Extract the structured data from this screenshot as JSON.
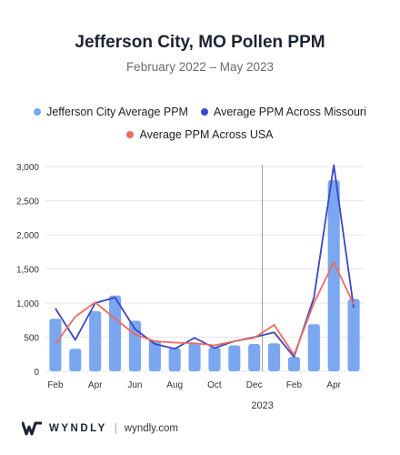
{
  "header": {
    "title": "Jefferson City, MO Pollen PPM",
    "subtitle": "February 2022 – May 2023"
  },
  "legend": [
    {
      "label": "Jefferson City Average PPM",
      "color": "#7aa7f0"
    },
    {
      "label": "Average PPM Across Missouri",
      "color": "#3a46c8"
    },
    {
      "label": "Average PPM Across USA",
      "color": "#ef6b5e"
    }
  ],
  "footer": {
    "brand": "WYNDLY",
    "separator": "|",
    "site": "wyndly.com"
  },
  "chart_data": {
    "type": "bar",
    "months": [
      "Feb 2022",
      "Mar 2022",
      "Apr 2022",
      "May 2022",
      "Jun 2022",
      "Jul 2022",
      "Aug 2022",
      "Sep 2022",
      "Oct 2022",
      "Nov 2022",
      "Dec 2022",
      "Jan 2023",
      "Feb 2023",
      "Mar 2023",
      "Apr 2023",
      "May 2023"
    ],
    "xtick_labels": [
      "Feb",
      "",
      "Apr",
      "",
      "Jun",
      "",
      "Aug",
      "",
      "Oct",
      "",
      "Dec",
      "",
      "Feb",
      "",
      "Apr",
      ""
    ],
    "year_annotation": "2023",
    "yticks": [
      0,
      500,
      1000,
      1500,
      2000,
      2500,
      3000
    ],
    "ytick_labels": [
      "0",
      "500",
      "1,000",
      "1,500",
      "2,000",
      "2,500",
      "3,000"
    ],
    "ylim": [
      0,
      3000
    ],
    "series": [
      {
        "name": "Jefferson City Average PPM",
        "kind": "bar",
        "color": "#7aa7f0",
        "values": [
          770,
          330,
          880,
          1110,
          740,
          450,
          340,
          420,
          350,
          380,
          400,
          410,
          210,
          690,
          2800,
          1060
        ]
      },
      {
        "name": "Average PPM Across Missouri",
        "kind": "line",
        "color": "#3a46c8",
        "values": [
          920,
          460,
          1000,
          1080,
          620,
          400,
          330,
          490,
          340,
          440,
          500,
          570,
          210,
          1080,
          3020,
          930
        ]
      },
      {
        "name": "Average PPM Across USA",
        "kind": "line",
        "color": "#ef6b5e",
        "values": [
          400,
          800,
          1010,
          770,
          540,
          440,
          420,
          410,
          380,
          440,
          490,
          680,
          240,
          1000,
          1600,
          980
        ]
      }
    ]
  }
}
